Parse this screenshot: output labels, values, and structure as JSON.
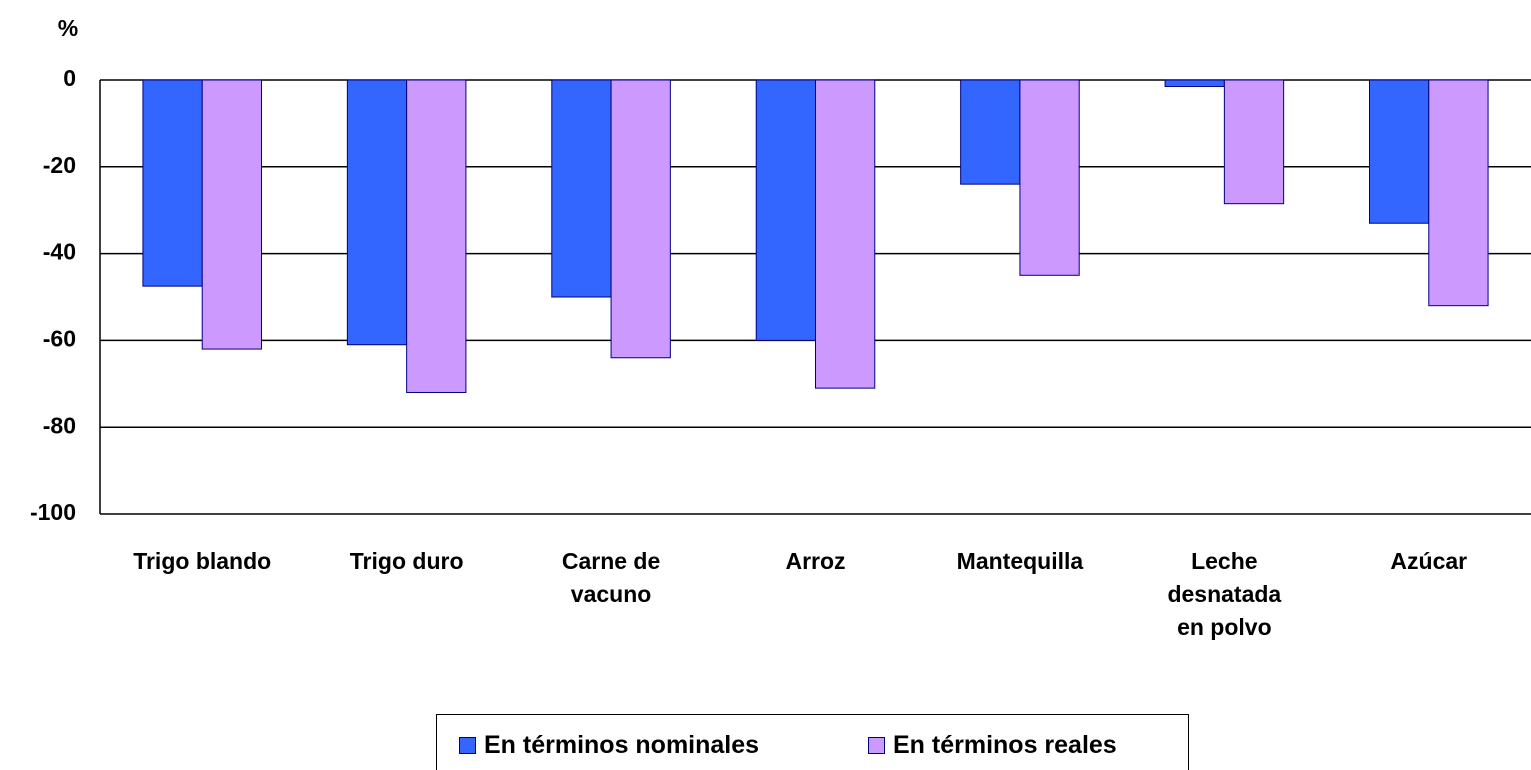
{
  "chart_data": {
    "type": "bar",
    "y_label": "%",
    "categories": [
      "Trigo blando",
      "Trigo duro",
      "Carne de\nvacuno",
      "Arroz",
      "Mantequilla",
      "Leche\ndesnatada\nen polvo",
      "Azúcar"
    ],
    "series": [
      {
        "name": "En términos nominales",
        "color": "#3366ff",
        "values": [
          -47.5,
          -61,
          -50,
          -60,
          -24,
          -1.5,
          -33
        ]
      },
      {
        "name": "En términos reales",
        "color": "#cc99ff",
        "values": [
          -62,
          -72,
          -64,
          -71,
          -45,
          -28.5,
          -52
        ]
      }
    ],
    "ylim": [
      -100,
      0
    ],
    "yticks": [
      0,
      -20,
      -40,
      -60,
      -80,
      -100
    ],
    "grid": true
  }
}
